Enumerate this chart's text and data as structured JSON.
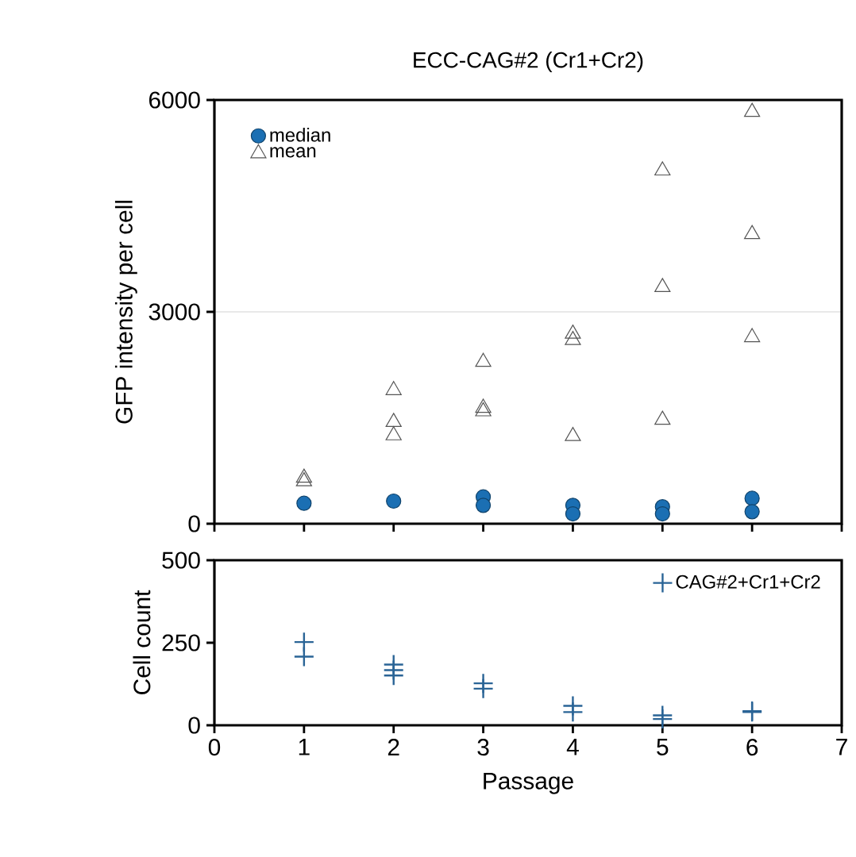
{
  "chart_data": [
    {
      "type": "scatter",
      "title": "ECC-CAG#2 (Cr1+Cr2)",
      "ylabel": "GFP intensity per cell",
      "xlim": [
        0,
        7
      ],
      "xticks": [
        0,
        1,
        2,
        3,
        4,
        5,
        6,
        7
      ],
      "ylim": [
        0,
        6000
      ],
      "yticks": [
        0,
        3000,
        6000
      ],
      "grid": "y",
      "tick_labels": "y",
      "legend": "top left",
      "series": [
        {
          "name": "median",
          "color": "#1b6fb3",
          "marker": "circle",
          "x": [
            1,
            2,
            3,
            3,
            4,
            4,
            5,
            5,
            6,
            6
          ],
          "values": [
            290,
            320,
            380,
            260,
            260,
            140,
            240,
            140,
            360,
            170
          ]
        },
        {
          "name": "mean",
          "color": "#555555",
          "marker": "triangle",
          "x": [
            1,
            1,
            2,
            2,
            2,
            3,
            3,
            3,
            4,
            4,
            4,
            5,
            5,
            5,
            6,
            6,
            6
          ],
          "values": [
            600,
            650,
            1890,
            1440,
            1250,
            2290,
            1640,
            1590,
            2690,
            2600,
            1240,
            5000,
            3350,
            1470,
            5830,
            4100,
            2640
          ]
        }
      ]
    },
    {
      "type": "scatter",
      "xlabel": "Passage",
      "ylabel": "Cell count",
      "xlim": [
        0,
        7
      ],
      "xticks": [
        0,
        1,
        2,
        3,
        4,
        5,
        6,
        7
      ],
      "ylim": [
        0,
        500
      ],
      "yticks": [
        0,
        250,
        500
      ],
      "legend": "top right",
      "series": [
        {
          "name": "CAG#2+Cr1+Cr2",
          "color": "#2a6496",
          "marker": "cross",
          "x": [
            1,
            1,
            2,
            2,
            2,
            3,
            3,
            4,
            4,
            5,
            5,
            6,
            6
          ],
          "values": [
            252,
            208,
            184,
            167,
            151,
            127,
            111,
            59,
            40,
            30,
            19,
            43,
            40
          ]
        }
      ]
    }
  ]
}
